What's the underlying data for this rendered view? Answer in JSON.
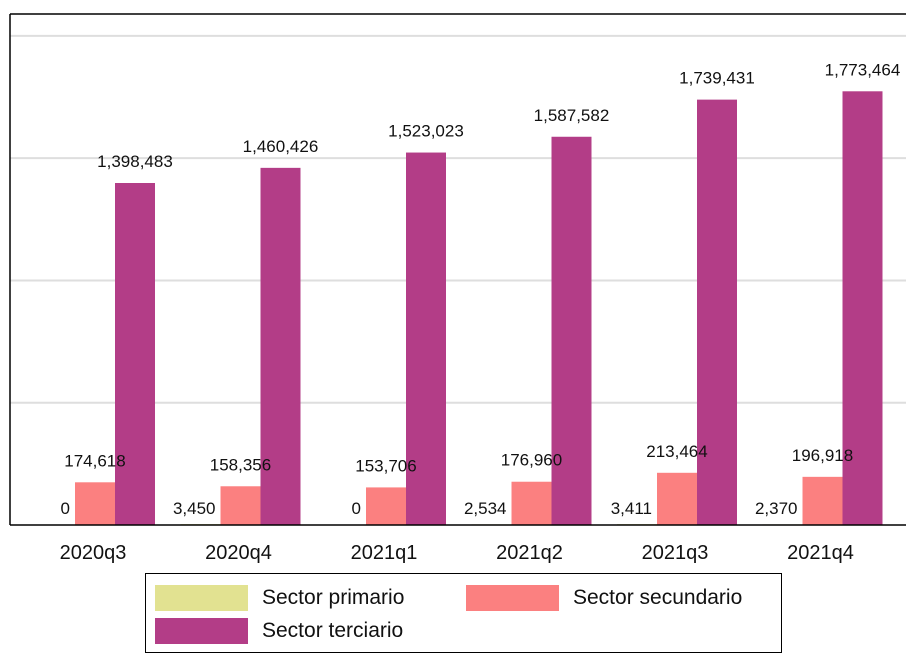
{
  "chart_data": {
    "type": "bar",
    "categories": [
      "2020q3",
      "2020q4",
      "2021q1",
      "2021q2",
      "2021q3",
      "2021q4"
    ],
    "series": [
      {
        "name": "Sector primario",
        "color": "#e2e291",
        "values": [
          0,
          3450,
          0,
          2534,
          3411,
          2370
        ],
        "labels": [
          "0",
          "3,450",
          "0",
          "2,534",
          "3,411",
          "2,370"
        ]
      },
      {
        "name": "Sector secundario",
        "color": "#fb8080",
        "values": [
          174618,
          158356,
          153706,
          176960,
          213464,
          196918
        ],
        "labels": [
          "174,618",
          "158,356",
          "153,706",
          "176,960",
          "213,464",
          "196,918"
        ]
      },
      {
        "name": "Sector terciario",
        "color": "#b33d87",
        "values": [
          1398483,
          1460426,
          1523023,
          1587582,
          1739431,
          1773464
        ],
        "labels": [
          "1,398,483",
          "1,460,426",
          "1,523,023",
          "1,587,582",
          "1,739,431",
          "1,773,464"
        ]
      }
    ],
    "ylim": [
      0,
      2000000
    ],
    "grid": true,
    "legend_position": "bottom"
  }
}
